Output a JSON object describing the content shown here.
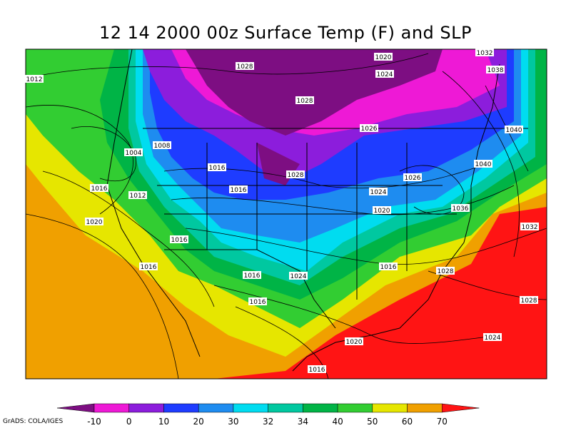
{
  "title": "12 14 2000 00z Surface Temp (F) and SLP",
  "credit": "GrADS: COLA/IGES",
  "isobars": [
    {
      "label": "1020"
    },
    {
      "label": "1032"
    },
    {
      "label": "1028"
    },
    {
      "label": "1024"
    },
    {
      "label": "1038"
    },
    {
      "label": "1012"
    },
    {
      "label": "1028"
    },
    {
      "label": "1026"
    },
    {
      "label": "1040"
    },
    {
      "label": "1004"
    },
    {
      "label": "1008"
    },
    {
      "label": "1016"
    },
    {
      "label": "1028"
    },
    {
      "label": "1026"
    },
    {
      "label": "1040"
    },
    {
      "label": "1016"
    },
    {
      "label": "1016"
    },
    {
      "label": "1012"
    },
    {
      "label": "1024"
    },
    {
      "label": "1020"
    },
    {
      "label": "1036"
    },
    {
      "label": "1020"
    },
    {
      "label": "1032"
    },
    {
      "label": "1016"
    },
    {
      "label": "1016"
    },
    {
      "label": "1028"
    },
    {
      "label": "1016"
    },
    {
      "label": "1016"
    },
    {
      "label": "1024"
    },
    {
      "label": "1016"
    },
    {
      "label": "1028"
    },
    {
      "label": "1024"
    },
    {
      "label": "1020"
    },
    {
      "label": "1016"
    }
  ],
  "colorbar": {
    "ticks": [
      "-10",
      "0",
      "10",
      "20",
      "30",
      "32",
      "34",
      "40",
      "50",
      "60",
      "70"
    ],
    "colors": [
      "#7d0e82",
      "#ee19d6",
      "#8c1ddc",
      "#1e3cff",
      "#1e8cf0",
      "#00dcf0",
      "#00c8a0",
      "#00b446",
      "#32cd32",
      "#e6e600",
      "#f0a000",
      "#ff1414"
    ]
  }
}
